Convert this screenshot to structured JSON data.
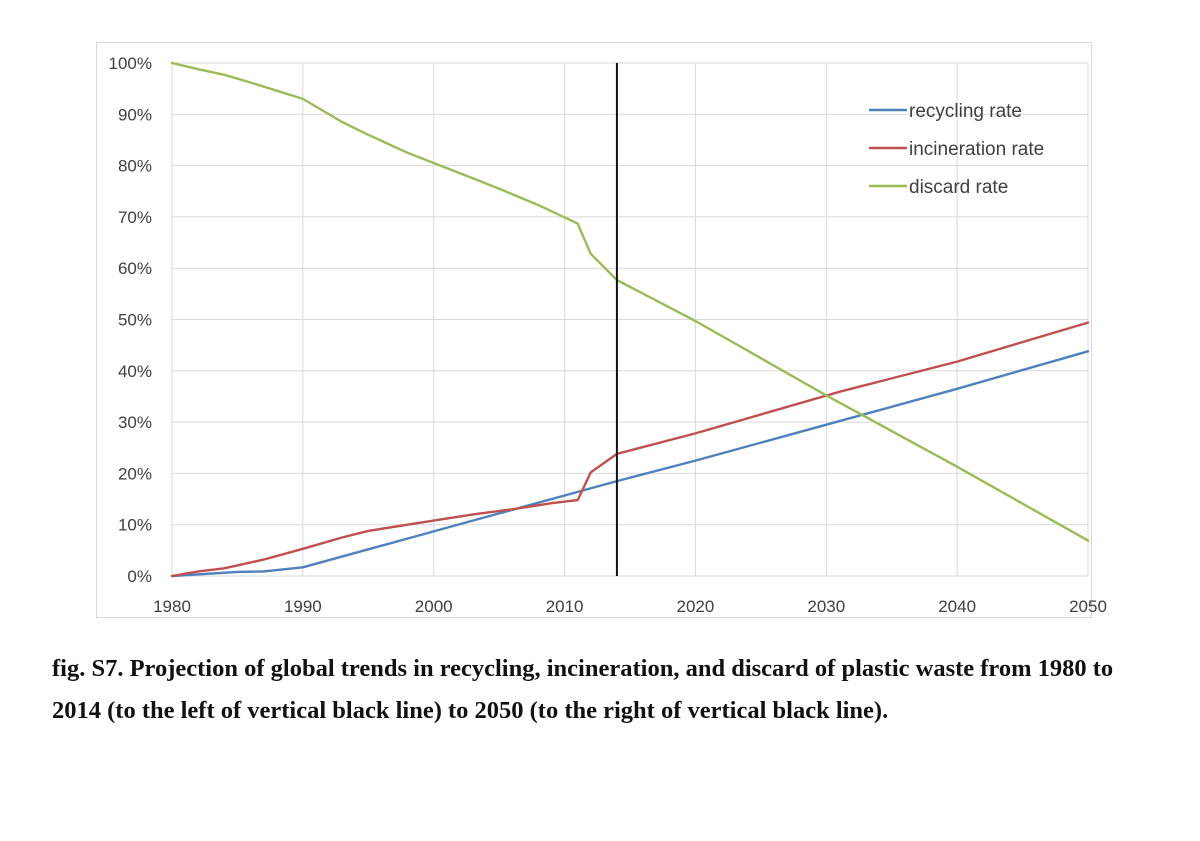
{
  "caption": "fig. S7. Projection of global trends in recycling, incineration, and discard of plastic waste from 1980 to 2014 (to the left of vertical black line) to 2050 (to the right of vertical black line).",
  "chart_data": {
    "type": "line",
    "title": "",
    "xlabel": "",
    "ylabel": "",
    "xlim": [
      1980,
      2050
    ],
    "ylim": [
      0,
      100
    ],
    "x_ticks": [
      1980,
      1990,
      2000,
      2010,
      2020,
      2030,
      2040,
      2050
    ],
    "x_tick_labels": [
      "1980",
      "1990",
      "2000",
      "2010",
      "2020",
      "2030",
      "2040",
      "2050"
    ],
    "y_ticks": [
      0,
      10,
      20,
      30,
      40,
      50,
      60,
      70,
      80,
      90,
      100
    ],
    "y_tick_labels": [
      "0%",
      "10%",
      "20%",
      "30%",
      "40%",
      "50%",
      "60%",
      "70%",
      "80%",
      "90%",
      "100%"
    ],
    "grid": true,
    "legend_position": "top-right",
    "vertical_line_x": 2014,
    "series": [
      {
        "name": "recycling rate",
        "color": "#4f81bd",
        "x": [
          1980,
          1985,
          1987,
          1990,
          1995,
          2000,
          2005,
          2010,
          2014,
          2020,
          2030,
          2040,
          2050
        ],
        "y": [
          0,
          0.8,
          0.9,
          1.7,
          5.2,
          8.7,
          12.2,
          15.7,
          18.5,
          22.5,
          29.5,
          36.5,
          43.8
        ]
      },
      {
        "name": "incineration rate",
        "color": "#c0504d",
        "x": [
          1980,
          1982,
          1984,
          1987,
          1990,
          1993,
          1995,
          1998,
          2000,
          2003,
          2006,
          2009,
          2011,
          2012,
          2014,
          2020,
          2031,
          2040,
          2050
        ],
        "y": [
          0,
          0.9,
          1.5,
          3.2,
          5.3,
          7.5,
          8.8,
          10.0,
          10.8,
          12.0,
          13.0,
          14.2,
          14.8,
          20.2,
          23.8,
          27.8,
          35.9,
          41.8,
          49.4
        ]
      },
      {
        "name": "discard rate",
        "color": "#9bbb59",
        "x": [
          1980,
          1982,
          1984,
          1986,
          1988,
          1990,
          1993,
          1995,
          1998,
          2000,
          2003,
          2005,
          2008,
          2011,
          2012,
          2014,
          2020,
          2030,
          2040,
          2050
        ],
        "y": [
          100,
          98.8,
          97.7,
          96.2,
          94.6,
          93.0,
          88.5,
          86.0,
          82.5,
          80.5,
          77.5,
          75.5,
          72.3,
          68.7,
          62.8,
          57.7,
          49.7,
          35.2,
          21.3,
          6.9
        ]
      }
    ]
  }
}
